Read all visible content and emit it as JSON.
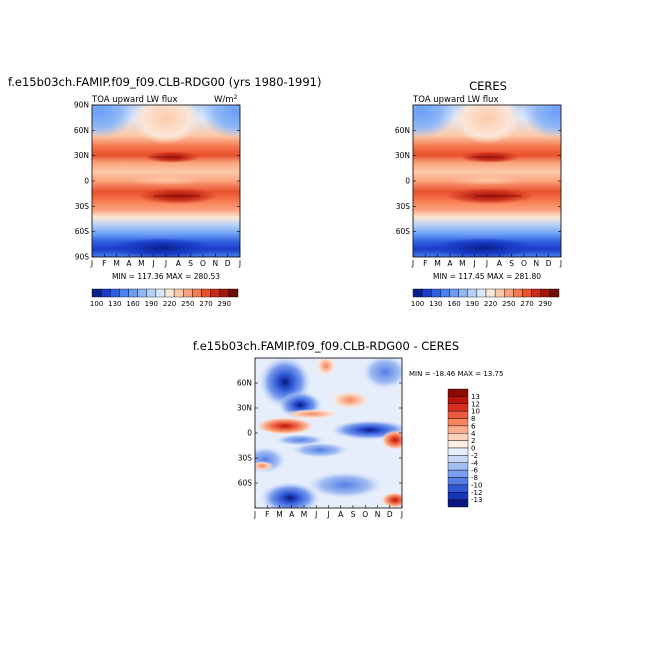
{
  "page": {
    "left_title": "f.e15b03ch.FAMIP.f09_f09.CLB-RDG00 (yrs 1980-1991)",
    "right_title": "CERES",
    "diff_title": "f.e15b03ch.FAMIP.f09_f09.CLB-RDG00 - CERES"
  },
  "chart_data": [
    {
      "type": "heatmap",
      "title": "f.e15b03ch.FAMIP.f09_f09.CLB-RDG00 (yrs 1980-1991)",
      "subtitle_left": "TOA upward LW flux",
      "units_label": "W/m",
      "units_sup": "2",
      "stats": "MIN = 117.36 MAX = 280.53",
      "x_ticks": [
        "J",
        "F",
        "M",
        "A",
        "M",
        "J",
        "J",
        "A",
        "S",
        "O",
        "N",
        "D",
        "J"
      ],
      "y_ticks": [
        "90N",
        "60N",
        "30N",
        "0",
        "30S",
        "60S",
        "90S"
      ],
      "y_tick_values": [
        90,
        60,
        30,
        0,
        -30,
        -60,
        -90
      ],
      "ylim": [
        -90,
        90
      ],
      "min": 117.36,
      "max": 280.53,
      "colorbar": {
        "labels": [
          "100",
          "130",
          "160",
          "190",
          "220",
          "250",
          "270",
          "290"
        ],
        "levels": [
          100,
          115,
          130,
          145,
          160,
          175,
          190,
          205,
          220,
          235,
          250,
          260,
          270,
          280,
          290
        ],
        "colors": [
          "#0a1f8a",
          "#1a3cc8",
          "#2f5fe0",
          "#4a80f0",
          "#6a9ef5",
          "#90b8f7",
          "#b7d0f7",
          "#dce8fa",
          "#fbe7d8",
          "#fcc9a9",
          "#fba37c",
          "#f67a50",
          "#e9502d",
          "#c92d1a",
          "#a01608",
          "#6e0b05"
        ]
      }
    },
    {
      "type": "heatmap",
      "title": "CERES",
      "subtitle_left": "TOA upward LW flux",
      "stats": "MIN = 117.45 MAX = 281.80",
      "x_ticks": [
        "J",
        "F",
        "M",
        "A",
        "M",
        "J",
        "J",
        "A",
        "S",
        "O",
        "N",
        "D",
        "J"
      ],
      "y_ticks": [
        "60N",
        "30N",
        "0",
        "30S",
        "60S"
      ],
      "y_tick_values": [
        60,
        30,
        0,
        -30,
        -60
      ],
      "ylim": [
        -90,
        90
      ],
      "min": 117.45,
      "max": 281.8,
      "colorbar": {
        "labels": [
          "100",
          "130",
          "160",
          "190",
          "220",
          "250",
          "270",
          "290"
        ]
      }
    },
    {
      "type": "heatmap",
      "title": "f.e15b03ch.FAMIP.f09_f09.CLB-RDG00 - CERES",
      "stats": "MIN = -18.46 MAX = 13.75",
      "x_ticks": [
        "J",
        "F",
        "M",
        "A",
        "M",
        "J",
        "J",
        "A",
        "S",
        "O",
        "N",
        "D",
        "J"
      ],
      "y_ticks": [
        "60N",
        "30N",
        "0",
        "30S",
        "60S"
      ],
      "y_tick_values": [
        60,
        30,
        0,
        -30,
        -60
      ],
      "ylim": [
        -90,
        90
      ],
      "min": -18.46,
      "max": 13.75,
      "colorbar": {
        "labels": [
          "13",
          "12",
          "10",
          "8",
          "6",
          "4",
          "2",
          "0",
          "-2",
          "-4",
          "-6",
          "-8",
          "-10",
          "-12",
          "-13"
        ],
        "colors": [
          "#8a0a05",
          "#b8150c",
          "#d72f1e",
          "#ec5a3d",
          "#f7865f",
          "#fbae8b",
          "#fcd2bb",
          "#fdeee4",
          "#e6eefc",
          "#c7d8f8",
          "#a2bdf3",
          "#7b9eee",
          "#557ee6",
          "#2f58d8",
          "#1536b8",
          "#0a1a80"
        ]
      }
    }
  ]
}
